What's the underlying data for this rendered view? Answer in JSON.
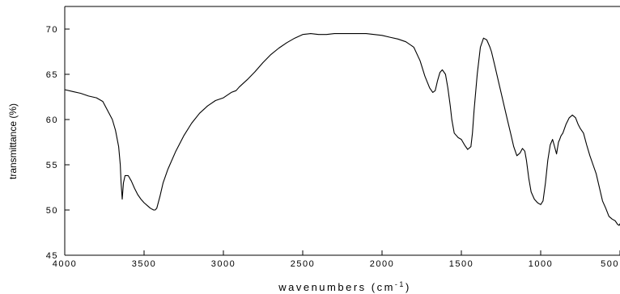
{
  "chart_data": {
    "type": "line",
    "title": "",
    "xlabel": "wavenumbers (cm",
    "xlabel_superscript": "-1",
    "xlabel_close": ")",
    "ylabel": "transmittance (%)",
    "xlim": [
      4000,
      500
    ],
    "x_reversed": true,
    "ylim": [
      45,
      72.5
    ],
    "x_ticks": [
      4000,
      3500,
      3000,
      2500,
      2000,
      1500,
      1000,
      500
    ],
    "x_tick_labels": [
      "4000",
      "3500",
      "3000",
      "2500",
      "2000",
      "1500",
      "1000",
      "500"
    ],
    "y_ticks": [
      45,
      50,
      55,
      60,
      65,
      70
    ],
    "y_tick_labels": [
      "45",
      "50",
      "55",
      "60",
      "65",
      "70"
    ],
    "grid": false,
    "legend": "none",
    "line_color": "#000000",
    "series": [
      {
        "x": [
          4000,
          3950,
          3900,
          3850,
          3800,
          3760,
          3730,
          3700,
          3680,
          3660,
          3650,
          3645,
          3638,
          3630,
          3620,
          3600,
          3580,
          3560,
          3540,
          3520,
          3500,
          3480,
          3460,
          3440,
          3430,
          3420,
          3400,
          3380,
          3350,
          3300,
          3250,
          3200,
          3150,
          3100,
          3050,
          3000,
          2950,
          2920,
          2900,
          2850,
          2800,
          2750,
          2700,
          2650,
          2600,
          2550,
          2500,
          2450,
          2400,
          2350,
          2300,
          2250,
          2200,
          2150,
          2100,
          2050,
          2000,
          1950,
          1900,
          1850,
          1800,
          1760,
          1730,
          1700,
          1680,
          1665,
          1650,
          1635,
          1620,
          1600,
          1585,
          1570,
          1560,
          1545,
          1520,
          1500,
          1480,
          1460,
          1440,
          1430,
          1420,
          1400,
          1380,
          1360,
          1340,
          1320,
          1310,
          1290,
          1270,
          1250,
          1230,
          1210,
          1190,
          1170,
          1150,
          1130,
          1115,
          1100,
          1090,
          1075,
          1060,
          1040,
          1020,
          1000,
          985,
          970,
          955,
          940,
          925,
          912,
          900,
          888,
          880,
          872,
          860,
          840,
          820,
          800,
          780,
          765,
          750,
          730,
          710,
          690,
          670,
          650,
          630,
          610,
          590,
          570,
          550,
          530,
          515,
          505,
          500
        ],
        "y": [
          63.3,
          63.1,
          62.9,
          62.6,
          62.4,
          62.0,
          61.0,
          60.0,
          58.8,
          57.0,
          55.0,
          53.0,
          51.2,
          53.0,
          53.8,
          53.8,
          53.2,
          52.4,
          51.7,
          51.2,
          50.8,
          50.5,
          50.2,
          50.0,
          50.0,
          50.2,
          51.5,
          53.0,
          54.5,
          56.5,
          58.2,
          59.6,
          60.7,
          61.5,
          62.1,
          62.4,
          63.0,
          63.2,
          63.6,
          64.4,
          65.3,
          66.3,
          67.2,
          67.9,
          68.5,
          69.0,
          69.4,
          69.5,
          69.4,
          69.4,
          69.5,
          69.5,
          69.5,
          69.5,
          69.5,
          69.4,
          69.3,
          69.1,
          68.9,
          68.6,
          68.0,
          66.5,
          64.8,
          63.5,
          63.0,
          63.2,
          64.3,
          65.2,
          65.5,
          65.0,
          63.5,
          61.5,
          60.0,
          58.5,
          58.0,
          57.8,
          57.2,
          56.7,
          57.0,
          58.5,
          61.0,
          65.0,
          68.0,
          69.0,
          68.8,
          68.0,
          67.5,
          66.0,
          64.5,
          63.0,
          61.5,
          60.0,
          58.5,
          57.0,
          56.0,
          56.3,
          56.8,
          56.5,
          55.5,
          53.5,
          52.0,
          51.2,
          50.8,
          50.6,
          51.0,
          53.0,
          55.5,
          57.2,
          57.8,
          57.0,
          56.2,
          57.5,
          57.8,
          58.2,
          58.5,
          59.5,
          60.2,
          60.5,
          60.2,
          59.5,
          59.0,
          58.5,
          57.2,
          56.0,
          55.0,
          54.0,
          52.5,
          51.0,
          50.2,
          49.3,
          49.0,
          48.8,
          48.4,
          48.3,
          48.5
        ]
      }
    ]
  }
}
